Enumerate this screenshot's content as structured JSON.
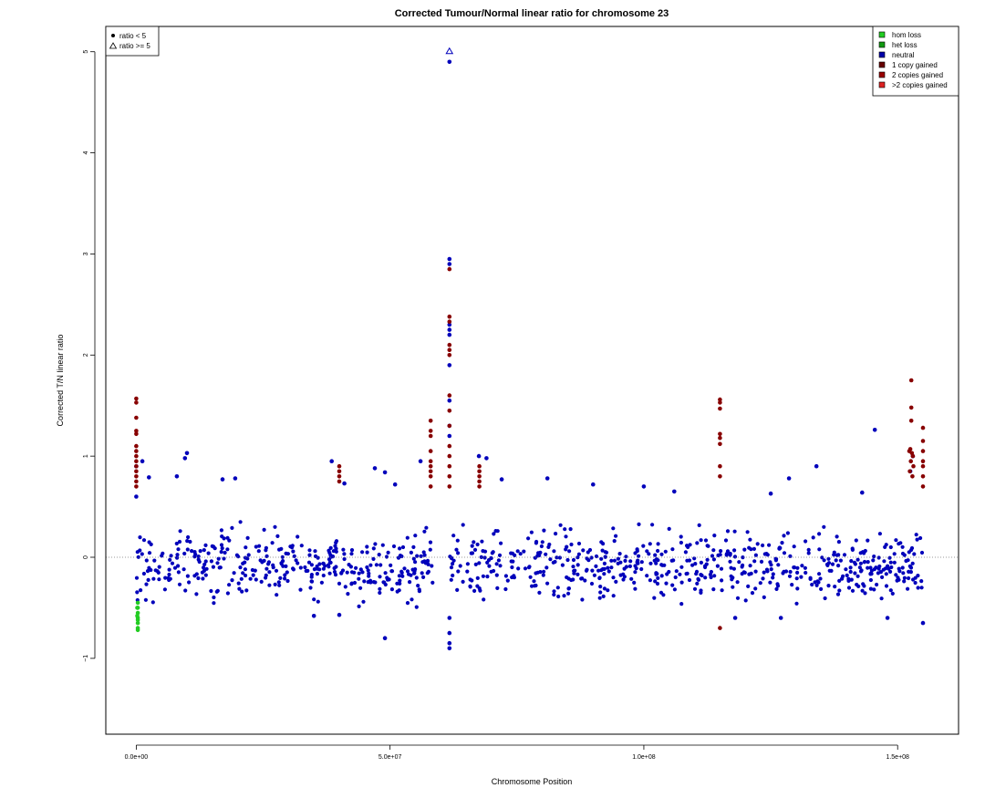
{
  "chart_data": {
    "type": "scatter",
    "title": "Corrected Tumour/Normal linear ratio for chromosome  23",
    "xlabel": "Chromosome Position",
    "ylabel": "Corrected T/N linear ratio",
    "xlim": [
      -6000000,
      162000000
    ],
    "ylim": [
      -1.75,
      5.25
    ],
    "x_ticks": [
      0,
      50000000,
      100000000,
      150000000
    ],
    "x_tick_labels": [
      "0.0e+00",
      "5.0e+07",
      "1.0e+08",
      "1.5e+08"
    ],
    "y_ticks": [
      -1,
      0,
      1,
      2,
      3,
      4,
      5
    ],
    "y_tick_labels": [
      "−1",
      "0",
      "1",
      "2",
      "3",
      "4",
      "5"
    ],
    "reference_line": 0,
    "grid": false,
    "marker_legend": {
      "placement": "top-left",
      "entries": [
        {
          "label": "ratio < 5",
          "marker": "filled-circle"
        },
        {
          "label": "ratio >= 5",
          "marker": "open-triangle"
        }
      ]
    },
    "legend": {
      "placement": "top-right",
      "entries": [
        {
          "label": "hom loss",
          "color": "#22cc22"
        },
        {
          "label": "het loss",
          "color": "#119911"
        },
        {
          "label": "neutral",
          "color": "#0000aa"
        },
        {
          "label": "1 copy gained",
          "color": "#660000"
        },
        {
          "label": "2 copies gained",
          "color": "#990000"
        },
        {
          "label": ">2 copies gained",
          "color": "#dd2222"
        }
      ]
    },
    "neutral_band": {
      "color": "#0000bb",
      "typical_range": [
        -0.45,
        0.45
      ],
      "x_segments": [
        [
          0,
          58500000
        ],
        [
          61800000,
          155000000
        ]
      ]
    },
    "series": [
      {
        "name": "neutral",
        "color": "#0000bb",
        "points": [
          [
            8000000,
            0.8
          ],
          [
            10000000,
            1.03
          ],
          [
            9600000,
            0.98
          ],
          [
            17000000,
            0.77
          ],
          [
            19500000,
            0.78
          ],
          [
            1200000,
            0.95
          ],
          [
            2500000,
            0.79
          ],
          [
            47000000,
            0.88
          ],
          [
            49000000,
            0.84
          ],
          [
            51000000,
            0.72
          ],
          [
            38500000,
            0.95
          ],
          [
            41000000,
            0.73
          ],
          [
            56000000,
            0.95
          ],
          [
            72000000,
            0.77
          ],
          [
            81000000,
            0.78
          ],
          [
            90000000,
            0.72
          ],
          [
            100000000,
            0.7
          ],
          [
            106000000,
            0.65
          ],
          [
            128600000,
            0.78
          ],
          [
            134000000,
            0.9
          ],
          [
            145500000,
            1.26
          ],
          [
            143000000,
            0.64
          ],
          [
            125000000,
            0.63
          ],
          [
            49000000,
            -0.8
          ],
          [
            35000000,
            -0.58
          ],
          [
            40000000,
            -0.57
          ],
          [
            118000000,
            -0.6
          ],
          [
            127000000,
            -0.6
          ],
          [
            148000000,
            -0.6
          ],
          [
            155000000,
            -0.65
          ],
          [
            61700000,
            5.0
          ],
          [
            61700000,
            4.9
          ],
          [
            61700000,
            2.95
          ],
          [
            61700000,
            2.9
          ],
          [
            61700000,
            2.3
          ],
          [
            61700000,
            2.25
          ],
          [
            61700000,
            2.2
          ],
          [
            61700000,
            1.9
          ],
          [
            61700000,
            1.55
          ],
          [
            61700000,
            -0.9
          ],
          [
            61700000,
            -0.85
          ],
          [
            61700000,
            -0.75
          ],
          [
            61700000,
            -0.6
          ],
          [
            61700000,
            1.3
          ],
          [
            61700000,
            1.2
          ],
          [
            67500000,
            1.0
          ],
          [
            69000000,
            0.98
          ],
          [
            0,
            0.9
          ],
          [
            0,
            0.6
          ],
          [
            153000000,
            1.0
          ],
          [
            152500000,
            0.85
          ]
        ]
      },
      {
        "name": "1 copy gained",
        "color": "#880000",
        "points": [
          [
            0,
            1.57
          ],
          [
            0,
            1.53
          ],
          [
            0,
            1.38
          ],
          [
            0,
            1.25
          ],
          [
            0,
            1.22
          ],
          [
            0,
            1.1
          ],
          [
            0,
            1.05
          ],
          [
            0,
            1.0
          ],
          [
            0,
            0.95
          ],
          [
            0,
            0.9
          ],
          [
            0,
            0.85
          ],
          [
            0,
            0.8
          ],
          [
            0,
            0.75
          ],
          [
            0,
            0.7
          ],
          [
            58000000,
            1.35
          ],
          [
            58000000,
            1.25
          ],
          [
            58000000,
            1.2
          ],
          [
            58000000,
            1.05
          ],
          [
            58000000,
            0.95
          ],
          [
            58000000,
            0.9
          ],
          [
            58000000,
            0.85
          ],
          [
            58000000,
            0.8
          ],
          [
            58000000,
            0.7
          ],
          [
            61700000,
            2.85
          ],
          [
            61700000,
            2.38
          ],
          [
            61700000,
            2.33
          ],
          [
            61700000,
            2.1
          ],
          [
            61700000,
            2.05
          ],
          [
            61700000,
            2.0
          ],
          [
            61700000,
            1.6
          ],
          [
            61700000,
            1.45
          ],
          [
            61700000,
            1.3
          ],
          [
            61700000,
            1.1
          ],
          [
            61700000,
            1.0
          ],
          [
            61700000,
            0.9
          ],
          [
            61700000,
            0.8
          ],
          [
            61700000,
            0.7
          ],
          [
            67600000,
            0.9
          ],
          [
            67600000,
            0.85
          ],
          [
            67600000,
            0.8
          ],
          [
            67600000,
            0.75
          ],
          [
            67600000,
            0.7
          ],
          [
            115000000,
            1.56
          ],
          [
            115000000,
            1.53
          ],
          [
            115000000,
            1.47
          ],
          [
            115000000,
            1.22
          ],
          [
            115000000,
            1.18
          ],
          [
            115000000,
            1.12
          ],
          [
            115000000,
            0.9
          ],
          [
            115000000,
            0.8
          ],
          [
            115000000,
            -0.7
          ],
          [
            40000000,
            0.9
          ],
          [
            40000000,
            0.85
          ],
          [
            40000000,
            0.8
          ],
          [
            40000000,
            0.75
          ],
          [
            152700000,
            1.75
          ],
          [
            152700000,
            1.48
          ],
          [
            152700000,
            1.35
          ],
          [
            152500000,
            1.07
          ],
          [
            152300000,
            1.05
          ],
          [
            152800000,
            1.03
          ],
          [
            153000000,
            1.0
          ],
          [
            152600000,
            0.95
          ],
          [
            153100000,
            0.9
          ],
          [
            152400000,
            0.85
          ],
          [
            152900000,
            0.8
          ],
          [
            155000000,
            1.28
          ],
          [
            155000000,
            1.15
          ],
          [
            155000000,
            1.05
          ],
          [
            155000000,
            0.95
          ],
          [
            155000000,
            0.9
          ],
          [
            155000000,
            0.8
          ],
          [
            155000000,
            0.7
          ]
        ]
      },
      {
        "name": "hom loss",
        "color": "#22cc22",
        "points": [
          [
            300000,
            -0.45
          ],
          [
            300000,
            -0.5
          ],
          [
            300000,
            -0.55
          ],
          [
            300000,
            -0.6
          ],
          [
            300000,
            -0.62
          ],
          [
            300000,
            -0.65
          ],
          [
            300000,
            -0.7
          ],
          [
            300000,
            -0.72
          ],
          [
            200000,
            -0.5
          ],
          [
            200000,
            -0.58
          ]
        ]
      },
      {
        "name": "ratio >= 5",
        "color": "#0000bb",
        "marker": "open-triangle",
        "points": [
          [
            61700000,
            5.0
          ]
        ]
      }
    ]
  }
}
